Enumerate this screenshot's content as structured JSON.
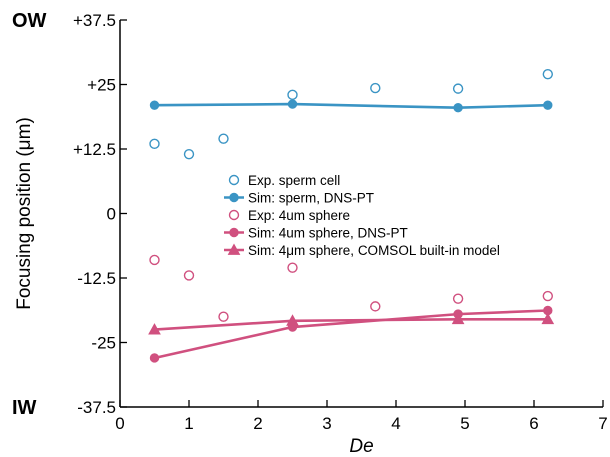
{
  "colors": {
    "blue": "#3a94c4",
    "pink": "#d0507f",
    "axis": "#000000"
  },
  "chart_data": {
    "type": "scatter",
    "xlabel": "De",
    "ylabel": "Focusing position (μm)",
    "xlim": [
      0,
      7
    ],
    "ylim": [
      -37.5,
      37.5
    ],
    "x_ticks": [
      {
        "value": 0,
        "label": "0"
      },
      {
        "value": 1,
        "label": "1"
      },
      {
        "value": 2,
        "label": "2"
      },
      {
        "value": 3,
        "label": "3"
      },
      {
        "value": 4,
        "label": "4"
      },
      {
        "value": 5,
        "label": "5"
      },
      {
        "value": 6,
        "label": "6"
      },
      {
        "value": 7,
        "label": "7"
      }
    ],
    "y_ticks": [
      {
        "value": 37.5,
        "label": "+37.5"
      },
      {
        "value": 25,
        "label": "+25"
      },
      {
        "value": 12.5,
        "label": "+12.5"
      },
      {
        "value": 0,
        "label": "0"
      },
      {
        "value": -12.5,
        "label": "-12.5"
      },
      {
        "value": -25,
        "label": "-25"
      },
      {
        "value": -37.5,
        "label": "-37.5"
      }
    ],
    "wall_labels": {
      "top": "OW",
      "bottom": "IW"
    },
    "legend_position": "center",
    "series": [
      {
        "name": "Exp. sperm cell",
        "color": "blue",
        "marker": "open-circle",
        "line": false,
        "points": [
          [
            0.5,
            13.5
          ],
          [
            1.0,
            11.5
          ],
          [
            1.5,
            14.5
          ],
          [
            2.5,
            23.0
          ],
          [
            3.7,
            24.3
          ],
          [
            4.9,
            24.2
          ],
          [
            6.2,
            27.0
          ]
        ]
      },
      {
        "name": "Sim: sperm, DNS-PT",
        "color": "blue",
        "marker": "filled-circle",
        "line": true,
        "points": [
          [
            0.5,
            21.0
          ],
          [
            2.5,
            21.2
          ],
          [
            4.9,
            20.5
          ],
          [
            6.2,
            21.0
          ]
        ]
      },
      {
        "name": "Exp: 4um sphere",
        "color": "pink",
        "marker": "open-circle",
        "line": false,
        "points": [
          [
            0.5,
            -9.0
          ],
          [
            1.0,
            -12.0
          ],
          [
            1.5,
            -20.0
          ],
          [
            2.5,
            -10.5
          ],
          [
            3.7,
            -18.0
          ],
          [
            4.9,
            -16.5
          ],
          [
            6.2,
            -16.0
          ]
        ]
      },
      {
        "name": "Sim: 4um sphere, DNS-PT",
        "color": "pink",
        "marker": "filled-circle",
        "line": true,
        "points": [
          [
            0.5,
            -28.0
          ],
          [
            2.5,
            -22.0
          ],
          [
            4.9,
            -19.5
          ],
          [
            6.2,
            -18.8
          ]
        ]
      },
      {
        "name": "Sim: 4μm sphere, COMSOL built-in model",
        "color": "pink",
        "marker": "filled-triangle",
        "line": true,
        "points": [
          [
            0.5,
            -22.5
          ],
          [
            2.5,
            -20.8
          ],
          [
            4.9,
            -20.5
          ],
          [
            6.2,
            -20.5
          ]
        ]
      }
    ]
  }
}
